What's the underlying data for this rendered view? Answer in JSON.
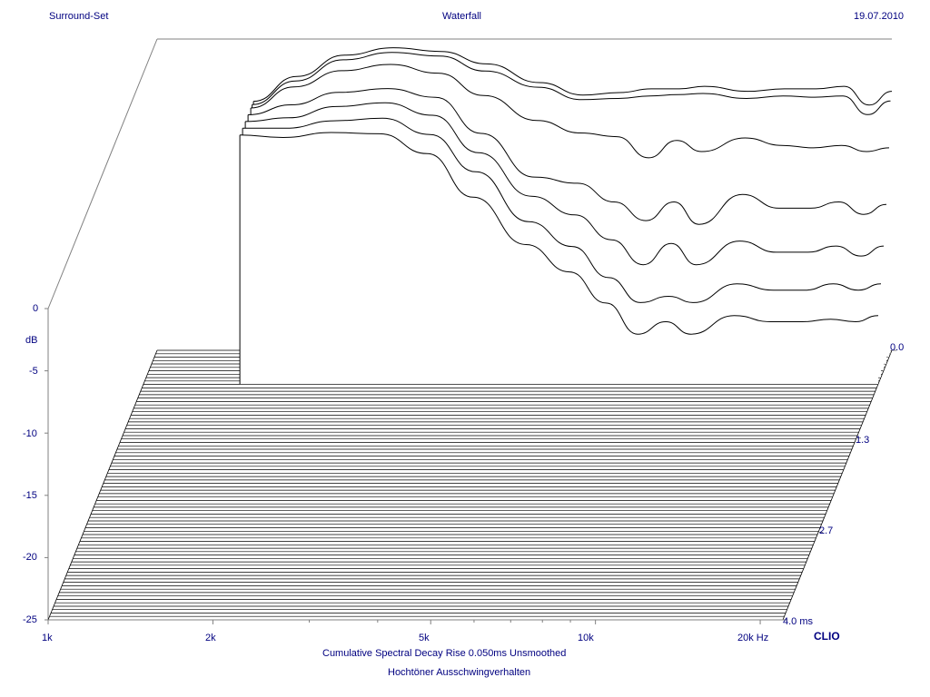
{
  "header": {
    "left": "Surround-Set",
    "center": "Waterfall",
    "right": "19.07.2010"
  },
  "footer": {
    "line1": "Cumulative Spectral Decay   Rise 0.050ms    Unsmoothed",
    "line2": "Hochtöner Ausschwingverhalten"
  },
  "brand": "CLIO",
  "colors": {
    "text": "#000080",
    "trace": "#000000",
    "frame": "#808080",
    "background": "#ffffff"
  },
  "chart_data": {
    "type": "waterfall",
    "x_axis": {
      "scale": "log",
      "range_hz": [
        1000,
        22000
      ],
      "tick_labels": [
        {
          "value": 1000,
          "label": "1k"
        },
        {
          "value": 2000,
          "label": "2k"
        },
        {
          "value": 5000,
          "label": "5k"
        },
        {
          "value": 10000,
          "label": "10k"
        },
        {
          "value": 20000,
          "label": "20k Hz"
        }
      ],
      "minor_ticks_hz": [
        3000,
        4000,
        6000,
        7000,
        8000,
        9000
      ]
    },
    "y_axis": {
      "label": "dB",
      "range_db": [
        -25,
        0
      ],
      "tick_labels": [
        {
          "value": 0,
          "label": "0"
        },
        {
          "value": -5,
          "label": "-5"
        },
        {
          "value": -10,
          "label": "-10"
        },
        {
          "value": -15,
          "label": "-15"
        },
        {
          "value": -20,
          "label": "-20"
        },
        {
          "value": -25,
          "label": "-25"
        }
      ]
    },
    "z_axis": {
      "unit": "ms",
      "range_ms": [
        0,
        4.0
      ],
      "tick_labels": [
        {
          "value": 0.0,
          "label": "0.0"
        },
        {
          "value": 1.3,
          "label": "1.3"
        },
        {
          "value": 2.7,
          "label": "2.7"
        },
        {
          "value": 4.0,
          "label": "4.0  ms"
        }
      ]
    },
    "slices_total": 80,
    "curves_freq_hz": [
      1500,
      1800,
      2200,
      2700,
      3300,
      4000,
      5000,
      6000,
      7000,
      8000,
      9000,
      10000,
      12000,
      14000,
      16000,
      18000,
      20000,
      22000
    ],
    "curves": [
      {
        "t_ms": 0.0,
        "db": [
          -5.0,
          -3.0,
          -1.3,
          -0.7,
          -1.0,
          -2.0,
          -3.5,
          -4.5,
          -4.3,
          -4.0,
          -4.0,
          -3.8,
          -4.2,
          -4.0,
          -4.0,
          -3.8,
          -5.3,
          -4.2
        ]
      },
      {
        "t_ms": 0.05,
        "db": [
          -5.0,
          -3.1,
          -1.4,
          -0.8,
          -1.1,
          -2.3,
          -3.6,
          -4.6,
          -4.5,
          -4.3,
          -4.2,
          -4.1,
          -4.5,
          -4.3,
          -4.4,
          -4.3,
          -5.8,
          -4.7
        ]
      },
      {
        "t_ms": 0.1,
        "db": [
          -5.0,
          -3.3,
          -2.0,
          -1.5,
          -2.2,
          -4.0,
          -6.0,
          -7.0,
          -7.3,
          -9.0,
          -7.6,
          -8.5,
          -7.4,
          -8.0,
          -8.2,
          -8.0,
          -8.5,
          -8.2
        ]
      },
      {
        "t_ms": 0.2,
        "db": [
          -5.0,
          -4.2,
          -3.2,
          -2.9,
          -3.6,
          -6.5,
          -10.0,
          -10.5,
          -12.0,
          -13.5,
          -12.0,
          -13.8,
          -11.4,
          -12.5,
          -12.5,
          -12.0,
          -13.0,
          -12.2
        ]
      },
      {
        "t_ms": 0.3,
        "db": [
          -5.0,
          -4.7,
          -3.8,
          -3.5,
          -4.5,
          -7.5,
          -11.0,
          -12.5,
          -14.5,
          -16.5,
          -14.8,
          -16.5,
          -14.6,
          -15.5,
          -15.5,
          -15.0,
          -15.8,
          -15.0
        ]
      },
      {
        "t_ms": 0.4,
        "db": [
          -5.0,
          -5.0,
          -4.4,
          -4.2,
          -5.5,
          -8.5,
          -12.5,
          -14.5,
          -17.0,
          -19.0,
          -18.5,
          -19.0,
          -17.5,
          -18.0,
          -18.0,
          -17.5,
          -18.0,
          -17.5
        ]
      },
      {
        "t_ms": 0.5,
        "db": [
          -5.0,
          -5.2,
          -4.8,
          -4.9,
          -6.5,
          -10.0,
          -13.8,
          -16.0,
          -18.5,
          -21.0,
          -20.0,
          -21.0,
          -19.5,
          -20.0,
          -20.0,
          -19.8,
          -20.0,
          -19.5
        ]
      }
    ]
  }
}
